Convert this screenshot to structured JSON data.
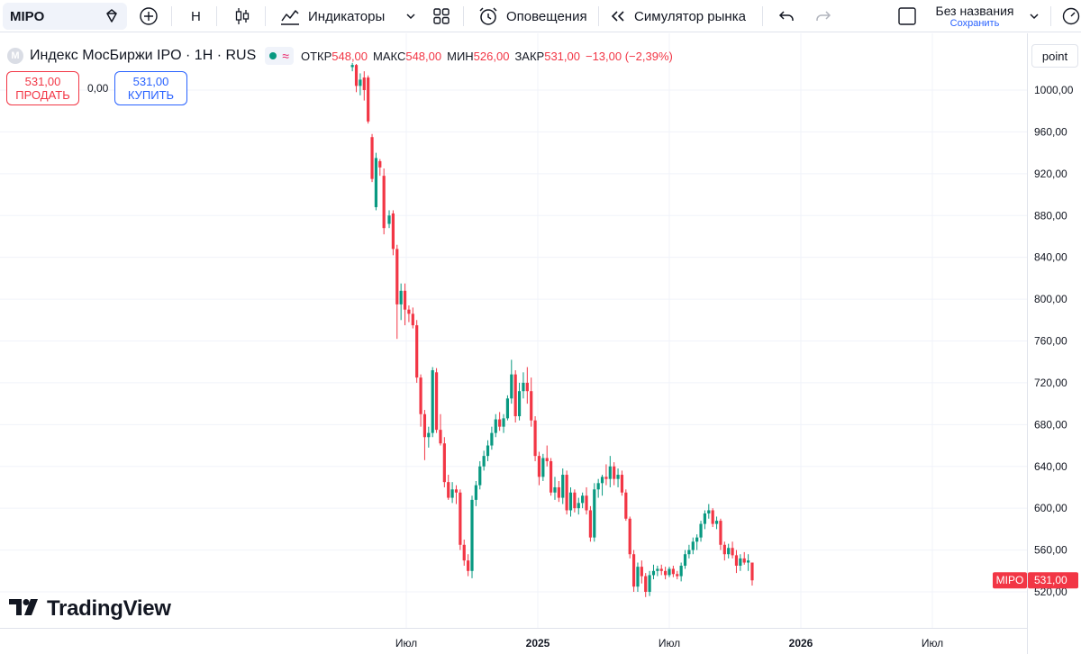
{
  "toolbar": {
    "symbol": "MIPO",
    "interval": "H",
    "indicators_label": "Индикаторы",
    "alerts_label": "Оповещения",
    "replay_label": "Симулятор рынка",
    "layout_title": "Без названия",
    "layout_save": "Сохранить",
    "icons": [
      "add-symbol-icon",
      "candles-icon",
      "indicators-icon",
      "chevron-down-icon",
      "layouts-grid-icon",
      "alarm-clock-icon",
      "rewind-icon",
      "undo-icon",
      "redo-icon",
      "layout-square-icon",
      "gauge-icon"
    ]
  },
  "legend": {
    "badge": "M",
    "title": "Индекс МосБиржи IPO · 1H · RUS",
    "open_label": "ОТКР",
    "open": "548,00",
    "high_label": "МАКС",
    "high": "548,00",
    "low_label": "МИН",
    "low": "526,00",
    "close_label": "ЗАКР",
    "close": "531,00",
    "change": "−13,00 (−2,39%)"
  },
  "trade": {
    "sell_price": "531,00",
    "sell_label": "ПРОДАТЬ",
    "spread": "0,00",
    "buy_price": "531,00",
    "buy_label": "КУПИТЬ"
  },
  "price_axis": {
    "unit": "point",
    "last_symbol": "MIPO",
    "last_price": "531,00"
  },
  "brand": {
    "logo_text": "TradingView"
  },
  "colors": {
    "up": "#089981",
    "down": "#f23645",
    "grid": "#f0f3fa",
    "brand_blue": "#2962ff"
  },
  "chart_data": {
    "type": "candlestick",
    "symbol": "MIPO",
    "ylim": [
      505,
      1030
    ],
    "yticks": [
      520,
      560,
      600,
      640,
      680,
      720,
      760,
      800,
      840,
      880,
      920,
      960,
      1000
    ],
    "ytick_labels": [
      "520,00",
      "560,00",
      "600,00",
      "640,00",
      "680,00",
      "720,00",
      "760,00",
      "800,00",
      "840,00",
      "880,00",
      "920,00",
      "960,00",
      "1000,00"
    ],
    "xticks": [
      {
        "label": "Июл",
        "bold": false,
        "t": 0.0
      },
      {
        "label": "2025",
        "bold": true,
        "t": 1.0
      },
      {
        "label": "Июл",
        "bold": false,
        "t": 2.0
      },
      {
        "label": "2026",
        "bold": true,
        "t": 3.0
      },
      {
        "label": "Июл",
        "bold": false,
        "t": 4.0
      }
    ],
    "grid": true,
    "candles": [
      [
        -0.41,
        1022,
        1026,
        1018,
        1024
      ],
      [
        -0.38,
        1024,
        1025,
        998,
        1004
      ],
      [
        -0.35,
        1004,
        1016,
        995,
        1010
      ],
      [
        -0.32,
        1012,
        1018,
        990,
        1000
      ],
      [
        -0.29,
        1012,
        1014,
        968,
        970
      ],
      [
        -0.26,
        955,
        958,
        912,
        915
      ],
      [
        -0.23,
        888,
        940,
        885,
        935
      ],
      [
        -0.2,
        932,
        934,
        918,
        926
      ],
      [
        -0.17,
        918,
        925,
        862,
        868
      ],
      [
        -0.13,
        872,
        885,
        868,
        880
      ],
      [
        -0.1,
        882,
        885,
        842,
        848
      ],
      [
        -0.07,
        848,
        852,
        762,
        795
      ],
      [
        -0.04,
        795,
        815,
        780,
        808
      ],
      [
        -0.01,
        808,
        815,
        775,
        790
      ],
      [
        0.02,
        790,
        794,
        778,
        786
      ],
      [
        0.05,
        786,
        792,
        772,
        775
      ],
      [
        0.08,
        775,
        780,
        720,
        725
      ],
      [
        0.11,
        725,
        728,
        678,
        690
      ],
      [
        0.14,
        690,
        694,
        646,
        668
      ],
      [
        0.17,
        668,
        678,
        658,
        672
      ],
      [
        0.2,
        672,
        735,
        668,
        732
      ],
      [
        0.23,
        730,
        734,
        672,
        675
      ],
      [
        0.26,
        675,
        690,
        660,
        662
      ],
      [
        0.29,
        662,
        668,
        620,
        625
      ],
      [
        0.32,
        625,
        632,
        608,
        610
      ],
      [
        0.35,
        610,
        625,
        605,
        618
      ],
      [
        0.38,
        618,
        622,
        604,
        615
      ],
      [
        0.41,
        615,
        618,
        560,
        565
      ],
      [
        0.44,
        565,
        570,
        545,
        550
      ],
      [
        0.47,
        550,
        556,
        535,
        540
      ],
      [
        0.5,
        540,
        612,
        533,
        608
      ],
      [
        0.53,
        608,
        626,
        602,
        622
      ],
      [
        0.56,
        622,
        645,
        618,
        640
      ],
      [
        0.59,
        640,
        655,
        636,
        650
      ],
      [
        0.62,
        650,
        665,
        645,
        660
      ],
      [
        0.65,
        660,
        678,
        656,
        672
      ],
      [
        0.68,
        672,
        690,
        668,
        685
      ],
      [
        0.71,
        685,
        692,
        674,
        678
      ],
      [
        0.74,
        678,
        690,
        672,
        686
      ],
      [
        0.77,
        686,
        708,
        684,
        705
      ],
      [
        0.8,
        705,
        742,
        700,
        728
      ],
      [
        0.83,
        728,
        732,
        682,
        688
      ],
      [
        0.86,
        688,
        720,
        684,
        712
      ],
      [
        0.89,
        712,
        730,
        705,
        720
      ],
      [
        0.92,
        720,
        735,
        700,
        712
      ],
      [
        0.95,
        712,
        725,
        678,
        684
      ],
      [
        0.98,
        684,
        688,
        645,
        650
      ],
      [
        1.01,
        650,
        654,
        622,
        630
      ],
      [
        1.04,
        630,
        652,
        626,
        648
      ],
      [
        1.07,
        648,
        660,
        640,
        645
      ],
      [
        1.1,
        645,
        648,
        612,
        615
      ],
      [
        1.13,
        615,
        630,
        608,
        620
      ],
      [
        1.16,
        620,
        626,
        606,
        610
      ],
      [
        1.19,
        610,
        638,
        604,
        632
      ],
      [
        1.22,
        632,
        636,
        594,
        598
      ],
      [
        1.25,
        598,
        620,
        592,
        615
      ],
      [
        1.28,
        615,
        618,
        596,
        600
      ],
      [
        1.31,
        600,
        610,
        594,
        605
      ],
      [
        1.34,
        605,
        615,
        600,
        612
      ],
      [
        1.37,
        612,
        620,
        594,
        598
      ],
      [
        1.4,
        598,
        602,
        568,
        572
      ],
      [
        1.43,
        572,
        624,
        568,
        618
      ],
      [
        1.46,
        618,
        628,
        610,
        624
      ],
      [
        1.49,
        624,
        632,
        612,
        630
      ],
      [
        1.52,
        630,
        642,
        622,
        628
      ],
      [
        1.55,
        628,
        650,
        620,
        640
      ],
      [
        1.58,
        640,
        644,
        622,
        628
      ],
      [
        1.61,
        628,
        638,
        620,
        632
      ],
      [
        1.64,
        632,
        636,
        612,
        615
      ],
      [
        1.67,
        615,
        618,
        588,
        590
      ],
      [
        1.7,
        590,
        592,
        552,
        556
      ],
      [
        1.73,
        556,
        560,
        520,
        525
      ],
      [
        1.76,
        525,
        548,
        520,
        544
      ],
      [
        1.79,
        544,
        550,
        528,
        535
      ],
      [
        1.82,
        535,
        538,
        515,
        520
      ],
      [
        1.85,
        520,
        540,
        516,
        536
      ],
      [
        1.88,
        536,
        546,
        532,
        540
      ],
      [
        1.91,
        540,
        545,
        535,
        542
      ],
      [
        1.94,
        542,
        546,
        536,
        540
      ],
      [
        1.97,
        540,
        544,
        532,
        536
      ],
      [
        2.0,
        536,
        544,
        534,
        542
      ],
      [
        2.03,
        542,
        545,
        534,
        537
      ],
      [
        2.06,
        537,
        540,
        532,
        535
      ],
      [
        2.09,
        535,
        548,
        530,
        545
      ],
      [
        2.12,
        545,
        560,
        542,
        556
      ],
      [
        2.15,
        556,
        565,
        552,
        560
      ],
      [
        2.18,
        560,
        572,
        556,
        568
      ],
      [
        2.21,
        568,
        575,
        560,
        572
      ],
      [
        2.24,
        572,
        588,
        568,
        585
      ],
      [
        2.27,
        585,
        598,
        580,
        595
      ],
      [
        2.3,
        595,
        604,
        590,
        598
      ],
      [
        2.33,
        598,
        600,
        582,
        585
      ],
      [
        2.36,
        585,
        592,
        580,
        588
      ],
      [
        2.39,
        588,
        590,
        560,
        565
      ],
      [
        2.42,
        565,
        568,
        550,
        556
      ],
      [
        2.45,
        556,
        566,
        552,
        562
      ],
      [
        2.48,
        562,
        568,
        552,
        555
      ],
      [
        2.51,
        555,
        560,
        538,
        545
      ],
      [
        2.54,
        545,
        556,
        540,
        552
      ],
      [
        2.57,
        552,
        558,
        546,
        548
      ],
      [
        2.6,
        548,
        556,
        540,
        550
      ],
      [
        2.63,
        548,
        548,
        526,
        531
      ]
    ]
  }
}
